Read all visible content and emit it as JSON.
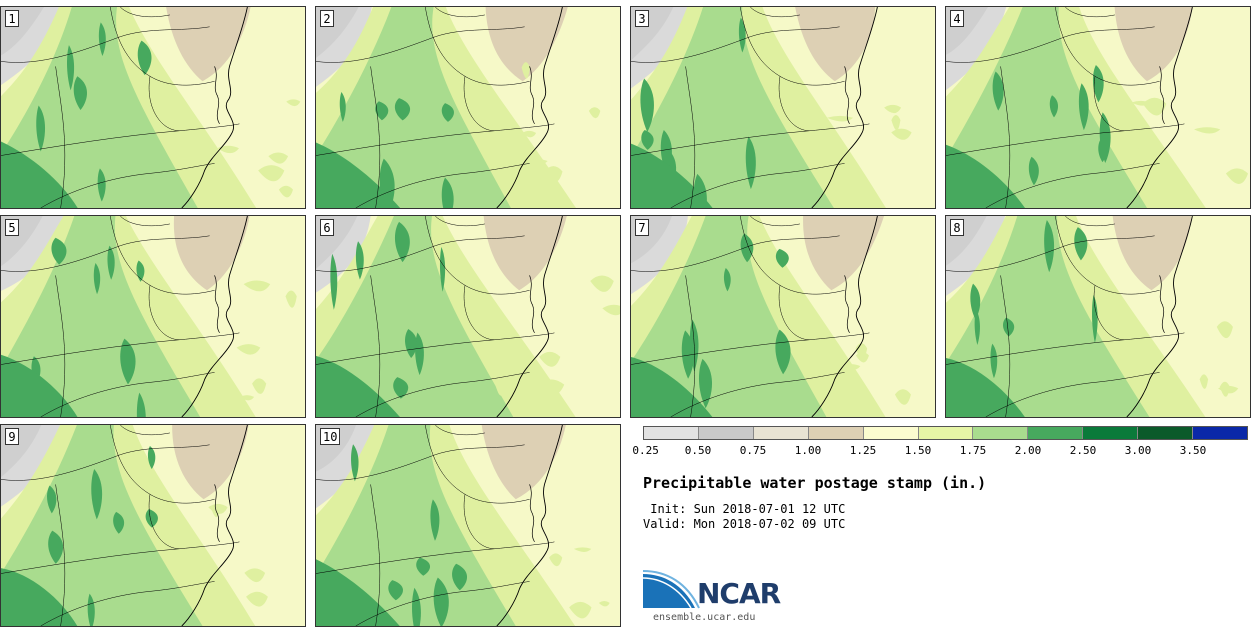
{
  "panels": [
    {
      "label": "1"
    },
    {
      "label": "2"
    },
    {
      "label": "3"
    },
    {
      "label": "4"
    },
    {
      "label": "5"
    },
    {
      "label": "6"
    },
    {
      "label": "7"
    },
    {
      "label": "8"
    },
    {
      "label": "9"
    },
    {
      "label": "10"
    }
  ],
  "legend": {
    "colors": [
      "#e2e2e2",
      "#c9c9c9",
      "#e8e3d3",
      "#ddd0b4",
      "#fbfccf",
      "#e6f5a6",
      "#a9dc8e",
      "#47a95e",
      "#0a7a3a",
      "#0b5a2a",
      "#0a28a8"
    ],
    "ticks": [
      "0.25",
      "0.50",
      "0.75",
      "1.00",
      "1.25",
      "1.50",
      "1.75",
      "2.00",
      "2.50",
      "3.00",
      "3.50"
    ]
  },
  "info": {
    "title": "Precipitable water postage stamp (in.)",
    "init": " Init: Sun 2018-07-01 12 UTC",
    "valid": "Valid: Mon 2018-07-02 09 UTC"
  },
  "branding": {
    "logo_text": "NCAR",
    "site": "ensemble.ucar.edu"
  }
}
